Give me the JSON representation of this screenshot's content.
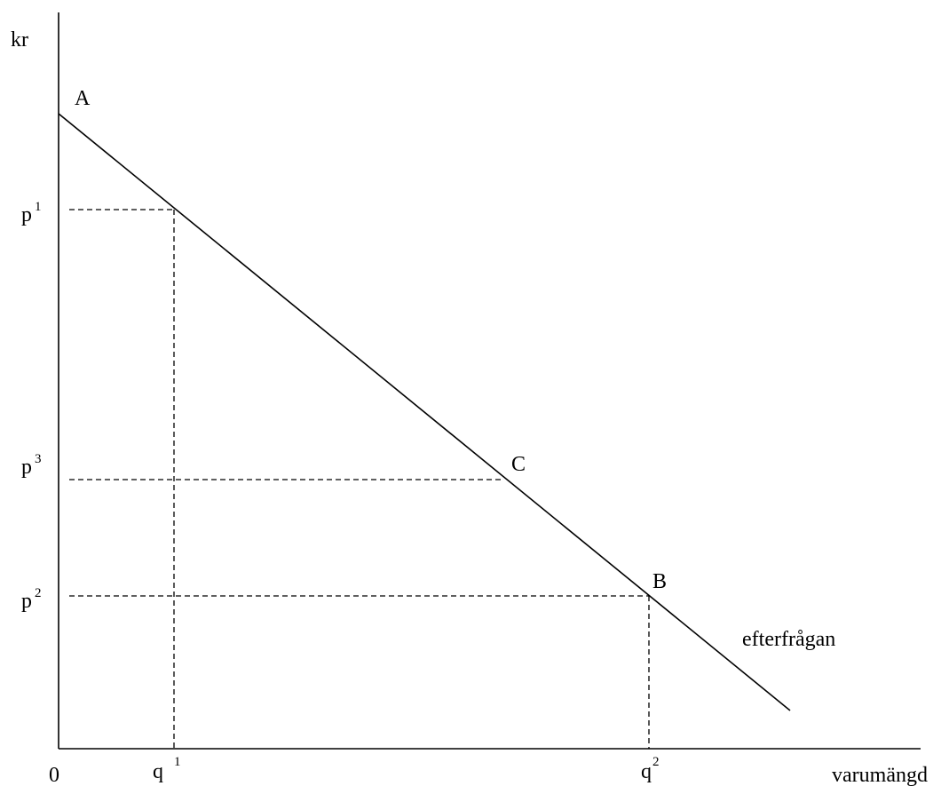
{
  "axes": {
    "y_label": "kr",
    "x_label": "varumängd",
    "origin": "0"
  },
  "demand_curve": {
    "label": "efterfrågan"
  },
  "points": {
    "a": "A",
    "b": "B",
    "c": "C"
  },
  "prices": {
    "p1": {
      "base": "p",
      "index": "1"
    },
    "p2": {
      "base": "p",
      "index": "2"
    },
    "p3": {
      "base": "p",
      "index": "3"
    }
  },
  "quantities": {
    "q1": {
      "base": "q",
      "index": "1"
    },
    "q2": {
      "base": "q",
      "index": "2"
    }
  }
}
